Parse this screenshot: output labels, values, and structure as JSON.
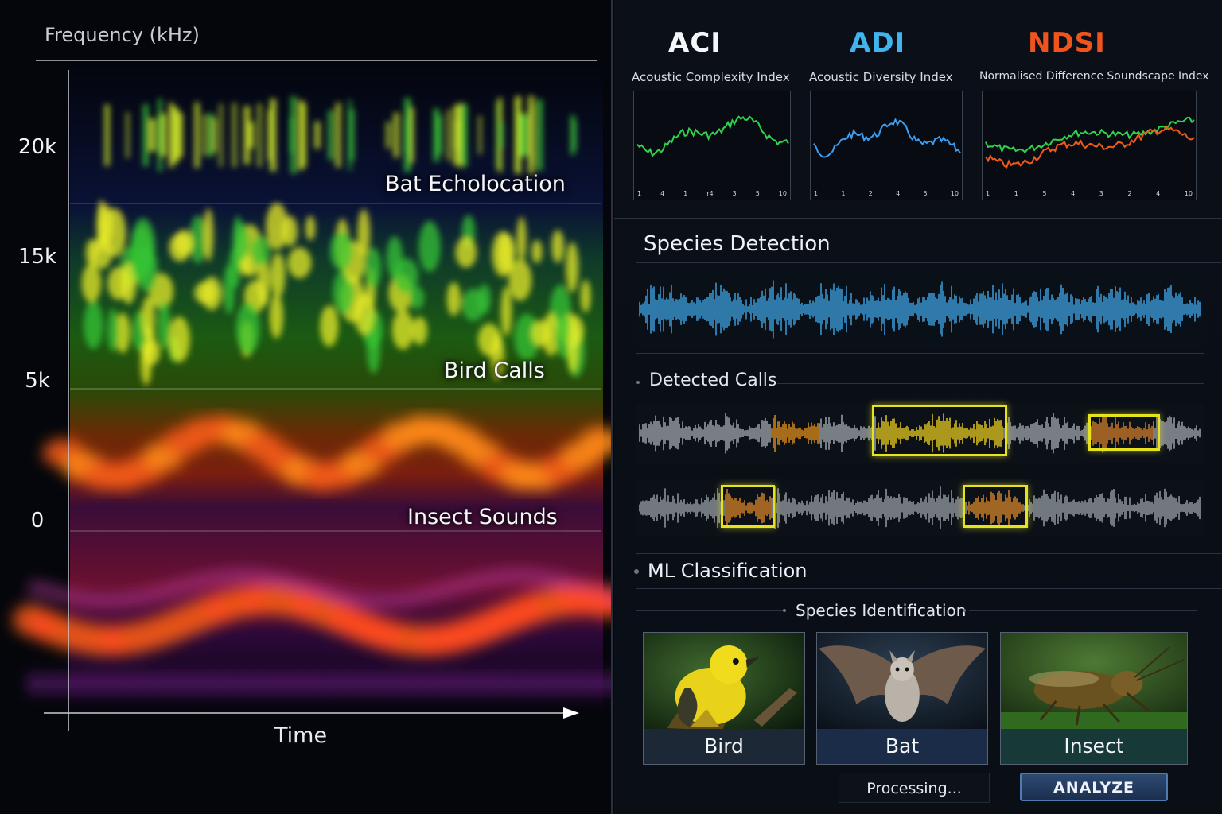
{
  "spectrogram": {
    "axis_title": "Frequency (kHz)",
    "y_ticks": [
      "20k",
      "15k",
      "5k",
      "0"
    ],
    "x_label": "Time",
    "bands": [
      {
        "label": "Bat Echolocation"
      },
      {
        "label": "Bird Calls"
      },
      {
        "label": "Insect Sounds"
      }
    ]
  },
  "indices": [
    {
      "name": "ACI",
      "subtitle": "Acoustic Complexity Index",
      "color": "#f4f6fa",
      "line_colors": [
        "#2ed44a"
      ],
      "ticks": [
        "1",
        "4",
        "1",
        "r4",
        "3",
        "5",
        "10"
      ]
    },
    {
      "name": "ADI",
      "subtitle": "Acoustic Diversity Index",
      "color": "#3fb4ee",
      "line_colors": [
        "#3b9ef2"
      ],
      "ticks": [
        "1",
        "1",
        "2",
        "4",
        "5",
        "10"
      ]
    },
    {
      "name": "NDSI",
      "subtitle": "Normalised Difference Soundscape Index",
      "color": "#f0541c",
      "line_colors": [
        "#2ed44a",
        "#f25a1a"
      ],
      "ticks": [
        "1",
        "1",
        "5",
        "4",
        "3",
        "2",
        "4",
        "10"
      ]
    }
  ],
  "species_detection": {
    "title": "Species Detection",
    "detected_calls_label": "Detected Calls"
  },
  "ml": {
    "title": "ML Classification",
    "subtitle": "Species Identification",
    "cards": [
      {
        "label": "Bird",
        "icon": "bird-icon",
        "label_bg": "#1c2836"
      },
      {
        "label": "Bat",
        "icon": "bat-icon",
        "label_bg": "#1a2c48"
      },
      {
        "label": "Insect",
        "icon": "insect-icon",
        "label_bg": "#173a38"
      }
    ],
    "status": "Processing...",
    "action": "ANALYZE"
  }
}
